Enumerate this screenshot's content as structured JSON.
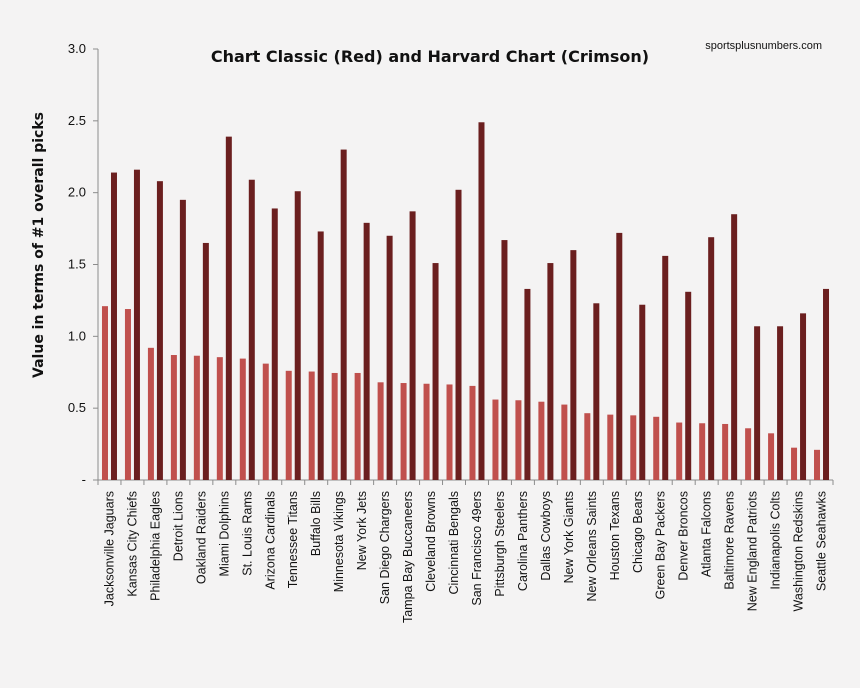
{
  "chart_data": {
    "type": "bar",
    "title": "Chart Classic (Red) and Harvard Chart (Crimson)",
    "source": "sportsplusnumbers.com",
    "ylabel": "Value in terms of #1 overall picks",
    "xlabel": "",
    "ylim": [
      0,
      3.0
    ],
    "yticks": [
      "-",
      "0.5",
      "1.0",
      "1.5",
      "2.0",
      "2.5",
      "3.0"
    ],
    "grid": false,
    "legend": "none",
    "categories": [
      "Jacksonville Jaguars",
      "Kansas City Chiefs",
      "Philadelphia Eagles",
      "Detroit Lions",
      "Oakland Raiders",
      "Miami Dolphins",
      "St. Louis Rams",
      "Arizona Cardinals",
      "Tennessee Titans",
      "Buffalo Bills",
      "Minnesota Vikings",
      "New York Jets",
      "San Diego Chargers",
      "Tampa Bay Buccaneers",
      "Cleveland Browns",
      "Cincinnati Bengals",
      "San Francisco 49ers",
      "Pittsburgh Steelers",
      "Carolina Panthers",
      "Dallas Cowboys",
      "New York Giants",
      "New Orleans Saints",
      "Houston Texans",
      "Chicago Bears",
      "Green Bay Packers",
      "Denver Broncos",
      "Atlanta Falcons",
      "Baltimore Ravens",
      "New England Patriots",
      "Indianapolis Colts",
      "Washington Redskins",
      "Seattle Seahawks"
    ],
    "series": [
      {
        "color": "#c0504d",
        "values": [
          1.21,
          1.19,
          0.92,
          0.87,
          0.865,
          0.855,
          0.845,
          0.81,
          0.76,
          0.755,
          0.745,
          0.745,
          0.68,
          0.675,
          0.67,
          0.665,
          0.655,
          0.56,
          0.555,
          0.545,
          0.525,
          0.465,
          0.455,
          0.45,
          0.44,
          0.4,
          0.395,
          0.39,
          0.36,
          0.325,
          0.225,
          0.21
        ]
      },
      {
        "color": "#6b1f1f",
        "values": [
          2.14,
          2.16,
          2.08,
          1.95,
          1.65,
          2.39,
          2.09,
          1.89,
          2.01,
          1.73,
          2.3,
          1.79,
          1.7,
          1.87,
          1.51,
          2.02,
          2.49,
          1.67,
          1.33,
          1.51,
          1.6,
          1.23,
          1.72,
          1.22,
          1.56,
          1.31,
          1.69,
          1.85,
          1.07,
          1.07,
          1.16,
          1.33
        ]
      }
    ]
  }
}
